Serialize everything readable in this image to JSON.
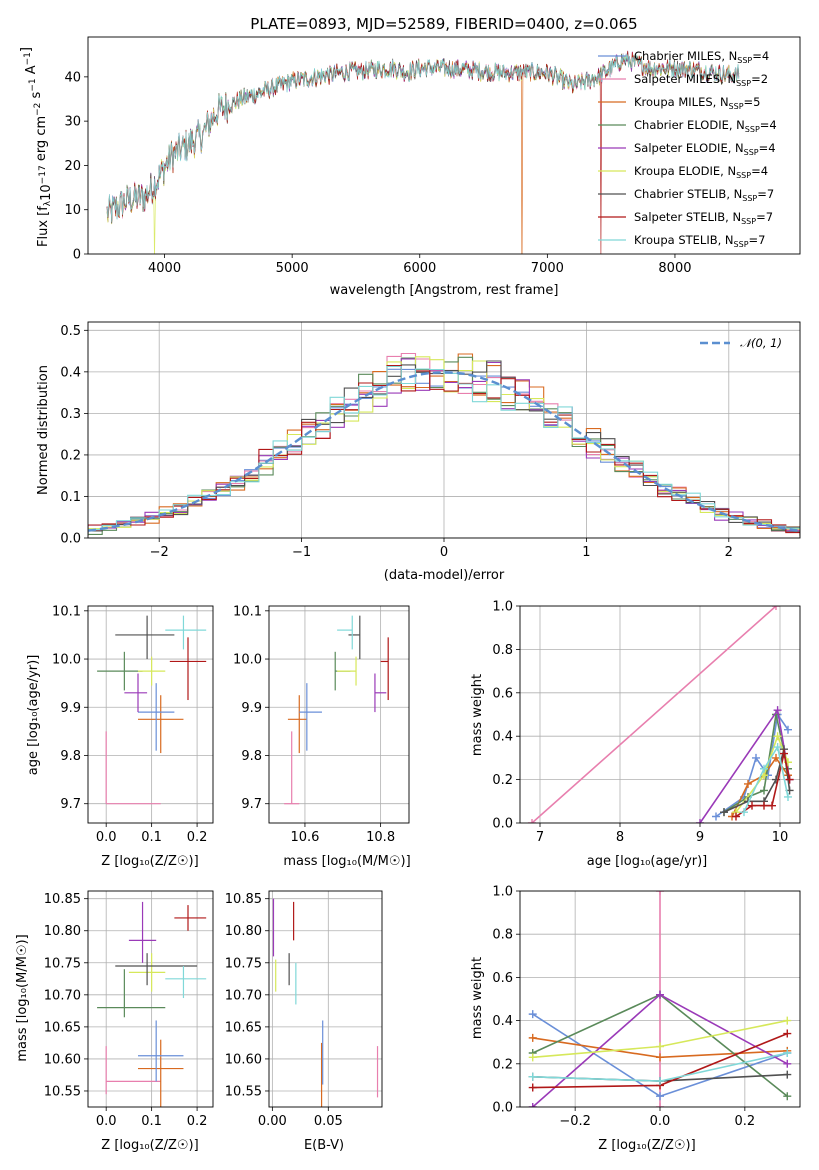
{
  "colors": {
    "chab_miles": "#6a8fd8",
    "salp_miles": "#e87fae",
    "krou_miles": "#d86a20",
    "chab_elodie": "#5a8a5a",
    "salp_elodie": "#9a3ab8",
    "krou_elodie": "#d6e85a",
    "chab_stelib": "#505050",
    "salp_stelib": "#b01818",
    "krou_stelib": "#80d8d8",
    "gaussian": "#5b8fd0"
  },
  "chart_data": [
    {
      "type": "line",
      "title": "PLATE=0893, MJD=52589, FIBERID=0400, z=0.065",
      "xlabel": "wavelength [Angstrom, rest frame]",
      "ylabel_parts": [
        "Flux [f",
        "λ",
        "10",
        "−17",
        " erg cm",
        "−2",
        " s",
        "−1",
        " A",
        "−1",
        "]"
      ],
      "xlim": [
        3400,
        8980
      ],
      "ylim": [
        0,
        49
      ],
      "xticks": [
        "4000",
        "5000",
        "6000",
        "7000",
        "8000"
      ],
      "xtick_values": [
        4000,
        5000,
        6000,
        7000,
        8000
      ],
      "yticks": [
        "0",
        "10",
        "20",
        "30",
        "40"
      ],
      "ytick_values": [
        0,
        10,
        20,
        30,
        40
      ],
      "continuum": {
        "x": [
          3550,
          3700,
          3850,
          3950,
          4050,
          4200,
          4300,
          4400,
          4600,
          4800,
          5000,
          5200,
          5400,
          5600,
          5800,
          5900,
          6000,
          6200,
          6400,
          6600,
          6800,
          7000,
          7200,
          7400,
          7600,
          7800,
          8000,
          8200,
          8400,
          8500
        ],
        "y": [
          9,
          12,
          13,
          17,
          22,
          25,
          27,
          32,
          35,
          37,
          39,
          40,
          41,
          41.5,
          42,
          41,
          42,
          42,
          41.5,
          41,
          41,
          41,
          38,
          40,
          44,
          42,
          42,
          41.5,
          40.5,
          40.5
        ]
      },
      "dropouts": [
        {
          "series": "Kroupa ELODIE",
          "x": 3920
        },
        {
          "series": "Kroupa MILES",
          "x": 6800
        },
        {
          "series": "Salpeter STELIB",
          "x": 7420
        }
      ],
      "legend": [
        {
          "name": "Chabrier MILES",
          "nssp": "4"
        },
        {
          "name": "Salpeter MILES",
          "nssp": "2"
        },
        {
          "name": "Kroupa MILES",
          "nssp": "5"
        },
        {
          "name": "Chabrier ELODIE",
          "nssp": "4"
        },
        {
          "name": "Salpeter ELODIE",
          "nssp": "4"
        },
        {
          "name": "Kroupa ELODIE",
          "nssp": "4"
        },
        {
          "name": "Chabrier STELIB",
          "nssp": "7"
        },
        {
          "name": "Salpeter STELIB",
          "nssp": "7"
        },
        {
          "name": "Kroupa STELIB",
          "nssp": "7"
        }
      ],
      "legend_prefix": "N",
      "legend_sub": "SSP",
      "legend_placement": "right"
    },
    {
      "type": "step",
      "xlabel": "(data-model)/error",
      "ylabel": "Normed distribution",
      "xlim": [
        -2.5,
        2.5
      ],
      "ylim": [
        0,
        0.52
      ],
      "xticks": [
        "−2",
        "−1",
        "0",
        "1",
        "2"
      ],
      "xtick_values": [
        -2,
        -1,
        0,
        1,
        2
      ],
      "yticks": [
        "0.0",
        "0.1",
        "0.2",
        "0.3",
        "0.4",
        "0.5"
      ],
      "ytick_values": [
        0,
        0.1,
        0.2,
        0.3,
        0.4,
        0.5
      ],
      "bin_width": 0.1,
      "legend": [
        {
          "name": "𝒩(0, 1)"
        }
      ],
      "grid": true
    },
    {
      "type": "errorbar",
      "xlabel": "Z [log₁₀(Z/Z☉)]",
      "ylabel": "age  [log₁₀(age/yr)]",
      "xlim": [
        -0.04,
        0.235
      ],
      "ylim": [
        9.66,
        10.11
      ],
      "xticks": [
        "0.0",
        "0.1",
        "0.2"
      ],
      "xtick_values": [
        0,
        0.1,
        0.2
      ],
      "yticks": [
        "9.7",
        "9.8",
        "9.9",
        "10.0",
        "10.1"
      ],
      "ytick_values": [
        9.7,
        9.8,
        9.9,
        10.0,
        10.1
      ],
      "points": [
        {
          "x": 0.0,
          "xerr": [
            0.0,
            0.12
          ],
          "y": 9.7,
          "yerr": [
            0.0,
            0.15
          ],
          "c": "salp_miles"
        },
        {
          "x": 0.12,
          "xerr": [
            0.05,
            0.05
          ],
          "y": 9.875,
          "yerr": [
            0.07,
            0.05
          ],
          "c": "krou_miles"
        },
        {
          "x": 0.11,
          "xerr": [
            0.04,
            0.04
          ],
          "y": 9.89,
          "yerr": [
            0.08,
            0.06
          ],
          "c": "chab_miles"
        },
        {
          "x": 0.07,
          "xerr": [
            0.03,
            0.02
          ],
          "y": 9.93,
          "yerr": [
            0.04,
            0.04
          ],
          "c": "salp_elodie"
        },
        {
          "x": 0.04,
          "xerr": [
            0.06,
            0.04
          ],
          "y": 9.975,
          "yerr": [
            0.04,
            0.04
          ],
          "c": "chab_elodie"
        },
        {
          "x": 0.1,
          "xerr": [
            0.03,
            0.03
          ],
          "y": 9.975,
          "yerr": [
            0.03,
            0.03
          ],
          "c": "krou_elodie"
        },
        {
          "x": 0.09,
          "xerr": [
            0.07,
            0.06
          ],
          "y": 10.05,
          "yerr": [
            0.05,
            0.04
          ],
          "c": "chab_stelib"
        },
        {
          "x": 0.18,
          "xerr": [
            0.04,
            0.04
          ],
          "y": 9.995,
          "yerr": [
            0.08,
            0.05
          ],
          "c": "salp_stelib"
        },
        {
          "x": 0.17,
          "xerr": [
            0.04,
            0.05
          ],
          "y": 10.06,
          "yerr": [
            0.04,
            0.03
          ],
          "c": "krou_stelib"
        }
      ]
    },
    {
      "type": "errorbar",
      "xlabel": "mass [log₁₀(M/M☉)]",
      "xlim": [
        10.505,
        10.875
      ],
      "ylim": [
        9.66,
        10.11
      ],
      "xticks": [
        "10.6",
        "10.8"
      ],
      "xtick_values": [
        10.6,
        10.8
      ],
      "yticks": [
        "9.7",
        "9.8",
        "9.9",
        "10.0",
        "10.1"
      ],
      "ytick_values": [
        9.7,
        9.8,
        9.9,
        10.0,
        10.1
      ],
      "points": [
        {
          "x": 10.565,
          "xerr": [
            0.02,
            0.02
          ],
          "y": 9.7,
          "yerr": [
            0.0,
            0.15
          ],
          "c": "salp_miles"
        },
        {
          "x": 10.585,
          "xerr": [
            0.03,
            0.02
          ],
          "y": 9.875,
          "yerr": [
            0.07,
            0.05
          ],
          "c": "krou_miles"
        },
        {
          "x": 10.605,
          "xerr": [
            0.02,
            0.04
          ],
          "y": 9.89,
          "yerr": [
            0.08,
            0.06
          ],
          "c": "chab_miles"
        },
        {
          "x": 10.785,
          "xerr": [
            0.0,
            0.03
          ],
          "y": 9.93,
          "yerr": [
            0.04,
            0.04
          ],
          "c": "salp_elodie"
        },
        {
          "x": 10.68,
          "xerr": [
            0.0,
            0.04
          ],
          "y": 9.975,
          "yerr": [
            0.04,
            0.04
          ],
          "c": "chab_elodie"
        },
        {
          "x": 10.735,
          "xerr": [
            0.05,
            0.0
          ],
          "y": 9.975,
          "yerr": [
            0.03,
            0.03
          ],
          "c": "krou_elodie"
        },
        {
          "x": 10.745,
          "xerr": [
            0.03,
            0.0
          ],
          "y": 10.05,
          "yerr": [
            0.05,
            0.04
          ],
          "c": "chab_stelib"
        },
        {
          "x": 10.82,
          "xerr": [
            0.02,
            0.0
          ],
          "y": 9.995,
          "yerr": [
            0.08,
            0.05
          ],
          "c": "salp_stelib"
        },
        {
          "x": 10.725,
          "xerr": [
            0.04,
            0.0
          ],
          "y": 10.06,
          "yerr": [
            0.04,
            0.03
          ],
          "c": "krou_stelib"
        }
      ]
    },
    {
      "type": "line",
      "xlabel": "age  [log₁₀(age/yr)]",
      "ylabel": "mass weight",
      "xlim": [
        6.75,
        10.25
      ],
      "ylim": [
        0,
        1
      ],
      "xticks": [
        "7",
        "8",
        "9",
        "10"
      ],
      "xtick_values": [
        7,
        8,
        9,
        10
      ],
      "yticks": [
        "0.0",
        "0.2",
        "0.4",
        "0.6",
        "0.8",
        "1.0"
      ],
      "ytick_values": [
        0,
        0.2,
        0.4,
        0.6,
        0.8,
        1.0
      ],
      "series": [
        {
          "c": "salp_miles",
          "x": [
            6.9,
            9.95
          ],
          "y": [
            0.0,
            1.0
          ]
        },
        {
          "c": "chab_miles",
          "x": [
            9.2,
            9.55,
            9.7,
            9.85,
            9.97,
            10.1
          ],
          "y": [
            0.03,
            0.12,
            0.3,
            0.22,
            0.5,
            0.43
          ]
        },
        {
          "c": "krou_miles",
          "x": [
            9.4,
            9.6,
            9.8,
            9.95,
            10.1
          ],
          "y": [
            0.03,
            0.18,
            0.22,
            0.3,
            0.22
          ]
        },
        {
          "c": "chab_elodie",
          "x": [
            9.3,
            9.6,
            9.8,
            9.95,
            10.1
          ],
          "y": [
            0.05,
            0.12,
            0.15,
            0.5,
            0.25
          ]
        },
        {
          "c": "salp_elodie",
          "x": [
            9.0,
            9.97,
            10.12
          ],
          "y": [
            0.0,
            0.52,
            0.2
          ]
        },
        {
          "c": "krou_elodie",
          "x": [
            9.45,
            9.8,
            9.97,
            10.1
          ],
          "y": [
            0.05,
            0.22,
            0.4,
            0.28
          ]
        },
        {
          "c": "chab_stelib",
          "x": [
            9.3,
            9.6,
            9.8,
            9.95,
            10.05,
            10.12
          ],
          "y": [
            0.05,
            0.1,
            0.1,
            0.2,
            0.34,
            0.15
          ]
        },
        {
          "c": "salp_stelib",
          "x": [
            9.45,
            9.65,
            9.8,
            9.9,
            10.05,
            10.12
          ],
          "y": [
            0.03,
            0.08,
            0.08,
            0.08,
            0.32,
            0.2
          ]
        },
        {
          "c": "krou_stelib",
          "x": [
            9.55,
            9.8,
            9.97,
            10.1
          ],
          "y": [
            0.05,
            0.25,
            0.35,
            0.12
          ]
        }
      ]
    },
    {
      "type": "errorbar",
      "xlabel": "Z [log₁₀(Z/Z☉)]",
      "ylabel": "mass [log₁₀(M/M☉)]",
      "xlim": [
        -0.04,
        0.235
      ],
      "ylim": [
        10.525,
        10.862
      ],
      "xticks": [
        "0.0",
        "0.1",
        "0.2"
      ],
      "xtick_values": [
        0,
        0.1,
        0.2
      ],
      "yticks": [
        "10.55",
        "10.60",
        "10.65",
        "10.70",
        "10.75",
        "10.80",
        "10.85"
      ],
      "ytick_values": [
        10.55,
        10.6,
        10.65,
        10.7,
        10.75,
        10.8,
        10.85
      ],
      "points": [
        {
          "x": 0.0,
          "xerr": [
            0.0,
            0.12
          ],
          "y": 10.565,
          "yerr": [
            0.02,
            0.055
          ],
          "c": "salp_miles"
        },
        {
          "x": 0.12,
          "xerr": [
            0.05,
            0.05
          ],
          "y": 10.585,
          "yerr": [
            0.06,
            0.045
          ],
          "c": "krou_miles"
        },
        {
          "x": 0.11,
          "xerr": [
            0.04,
            0.06
          ],
          "y": 10.605,
          "yerr": [
            0.04,
            0.055
          ],
          "c": "chab_miles"
        },
        {
          "x": 0.08,
          "xerr": [
            0.03,
            0.03
          ],
          "y": 10.785,
          "yerr": [
            0.035,
            0.06
          ],
          "c": "salp_elodie"
        },
        {
          "x": 0.04,
          "xerr": [
            0.06,
            0.09
          ],
          "y": 10.68,
          "yerr": [
            0.015,
            0.06
          ],
          "c": "chab_elodie"
        },
        {
          "x": 0.1,
          "xerr": [
            0.05,
            0.03
          ],
          "y": 10.735,
          "yerr": [
            0.03,
            0.03
          ],
          "c": "krou_elodie"
        },
        {
          "x": 0.09,
          "xerr": [
            0.07,
            0.11
          ],
          "y": 10.745,
          "yerr": [
            0.03,
            0.02
          ],
          "c": "chab_stelib"
        },
        {
          "x": 0.18,
          "xerr": [
            0.03,
            0.04
          ],
          "y": 10.82,
          "yerr": [
            0.02,
            0.02
          ],
          "c": "salp_stelib"
        },
        {
          "x": 0.17,
          "xerr": [
            0.04,
            0.05
          ],
          "y": 10.725,
          "yerr": [
            0.03,
            0.02
          ],
          "c": "krou_stelib"
        }
      ]
    },
    {
      "type": "errorbar",
      "xlabel": "E(B-V)",
      "xlim": [
        -0.003,
        0.098
      ],
      "ylim": [
        10.525,
        10.862
      ],
      "xticks": [
        "0.00",
        "0.05"
      ],
      "xtick_values": [
        0,
        0.05
      ],
      "yticks": [
        "10.55",
        "10.60",
        "10.65",
        "10.70",
        "10.75",
        "10.80",
        "10.85"
      ],
      "ytick_values": [
        10.55,
        10.6,
        10.65,
        10.7,
        10.75,
        10.8,
        10.85
      ],
      "points": [
        {
          "x": 0.094,
          "xerr": [
            0,
            0
          ],
          "y": 10.565,
          "yerr": [
            0.025,
            0.055
          ],
          "c": "salp_miles"
        },
        {
          "x": 0.044,
          "xerr": [
            0,
            0
          ],
          "y": 10.585,
          "yerr": [
            0.06,
            0.04
          ],
          "c": "krou_miles"
        },
        {
          "x": 0.045,
          "xerr": [
            0,
            0
          ],
          "y": 10.605,
          "yerr": [
            0.045,
            0.055
          ],
          "c": "chab_miles"
        },
        {
          "x": 0.001,
          "xerr": [
            0,
            0
          ],
          "y": 10.79,
          "yerr": [
            0.03,
            0.06
          ],
          "c": "salp_elodie"
        },
        {
          "x": 0.003,
          "xerr": [
            0,
            0
          ],
          "y": 10.735,
          "yerr": [
            0.03,
            0.02
          ],
          "c": "krou_elodie"
        },
        {
          "x": 0.015,
          "xerr": [
            0,
            0
          ],
          "y": 10.745,
          "yerr": [
            0.03,
            0.02
          ],
          "c": "chab_stelib"
        },
        {
          "x": 0.019,
          "xerr": [
            0,
            0
          ],
          "y": 10.82,
          "yerr": [
            0.035,
            0.025
          ],
          "c": "salp_stelib"
        },
        {
          "x": 0.021,
          "xerr": [
            0,
            0
          ],
          "y": 10.72,
          "yerr": [
            0.035,
            0.03
          ],
          "c": "krou_stelib"
        }
      ]
    },
    {
      "type": "line",
      "xlabel": "Z [log₁₀(Z/Z☉)]",
      "ylabel": "mass weight",
      "xlim": [
        -0.33,
        0.33
      ],
      "ylim": [
        0,
        1
      ],
      "xticks": [
        "−0.2",
        "0.0",
        "0.2"
      ],
      "xtick_values": [
        -0.2,
        0,
        0.2
      ],
      "yticks": [
        "0.0",
        "0.2",
        "0.4",
        "0.6",
        "0.8",
        "1.0"
      ],
      "ytick_values": [
        0,
        0.2,
        0.4,
        0.6,
        0.8,
        1.0
      ],
      "series": [
        {
          "c": "salp_miles",
          "x": [
            0.0,
            0.0
          ],
          "y": [
            0.0,
            1.0
          ]
        },
        {
          "c": "chab_miles",
          "x": [
            -0.3,
            0.0,
            0.3
          ],
          "y": [
            0.43,
            0.05,
            0.25
          ]
        },
        {
          "c": "krou_miles",
          "x": [
            -0.3,
            0.0,
            0.3
          ],
          "y": [
            0.32,
            0.23,
            0.26
          ]
        },
        {
          "c": "chab_elodie",
          "x": [
            -0.3,
            0.0,
            0.3
          ],
          "y": [
            0.25,
            0.52,
            0.05
          ]
        },
        {
          "c": "salp_elodie",
          "x": [
            -0.3,
            0.0,
            0.3
          ],
          "y": [
            0.0,
            0.52,
            0.2
          ]
        },
        {
          "c": "krou_elodie",
          "x": [
            -0.3,
            0.0,
            0.3
          ],
          "y": [
            0.23,
            0.28,
            0.4
          ]
        },
        {
          "c": "chab_stelib",
          "x": [
            -0.3,
            0.0,
            0.3
          ],
          "y": [
            0.14,
            0.12,
            0.15
          ]
        },
        {
          "c": "salp_stelib",
          "x": [
            -0.3,
            0.0,
            0.3
          ],
          "y": [
            0.09,
            0.1,
            0.34
          ]
        },
        {
          "c": "krou_stelib",
          "x": [
            -0.3,
            0.0,
            0.3
          ],
          "y": [
            0.14,
            0.12,
            0.25
          ]
        }
      ]
    }
  ]
}
